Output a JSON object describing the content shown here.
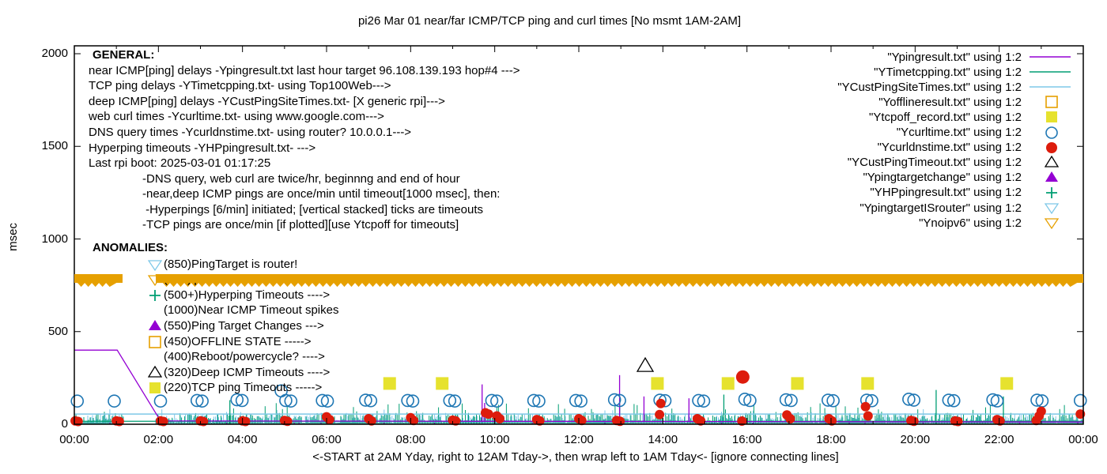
{
  "title": "pi26 Mar 01  near/far ICMP/TCP ping and curl times [No msmt 1AM-2AM]",
  "axes": {
    "ylabel": "msec",
    "xlabel": "<-START at 2AM Yday, right to 12AM Tday->, then wrap left to 1AM Tday<- [ignore connecting lines]",
    "x_tick_hours": [
      0,
      2,
      4,
      6,
      8,
      10,
      12,
      14,
      16,
      18,
      20,
      22,
      24
    ],
    "x_tick_labels": [
      "00:00",
      "02:00",
      "04:00",
      "06:00",
      "08:00",
      "10:00",
      "12:00",
      "14:00",
      "16:00",
      "18:00",
      "20:00",
      "22:00",
      "00:00"
    ],
    "y_ticks": [
      0,
      500,
      1000,
      1500,
      2000
    ],
    "y_tick_labels": [
      "0",
      "500",
      "1000",
      "1500",
      "2000"
    ]
  },
  "legend": {
    "items": [
      {
        "label": "\"Ypingresult.txt\" using 1:2",
        "marker": "line",
        "color": "#9400d3"
      },
      {
        "label": "\"YTimetcpping.txt\" using 1:2",
        "marker": "line",
        "color": "#009e73"
      },
      {
        "label": "\"YCustPingSiteTimes.txt\" using 1:2",
        "marker": "line",
        "color": "#7ec8e8"
      },
      {
        "label": "\"Yofflineresult.txt\" using 1:2",
        "marker": "square-open",
        "color": "#e6a000"
      },
      {
        "label": "\"Ytcpoff_record.txt\" using 1:2",
        "marker": "square-filled",
        "color": "#e6e22e"
      },
      {
        "label": "\"Ycurltime.txt\" using 1:2",
        "marker": "circle-open",
        "color": "#1f77b4"
      },
      {
        "label": "\"Ycurldnstime.txt\" using 1:2",
        "marker": "circle-filled",
        "color": "#dd1c0c"
      },
      {
        "label": "\"YCustPingTimeout.txt\" using 1:2",
        "marker": "triangle-open",
        "color": "#000000"
      },
      {
        "label": "\"Ypingtargetchange\" using 1:2",
        "marker": "triangle-filled",
        "color": "#9400d3"
      },
      {
        "label": "\"YHPpingresult.txt\" using 1:2",
        "marker": "plus",
        "color": "#009e73"
      },
      {
        "label": "\"YpingtargetISrouter\" using 1:2",
        "marker": "triangle-down-open",
        "color": "#7ec8e8"
      },
      {
        "label": "\"Ynoipv6\" using 1:2",
        "marker": "triangle-down-open",
        "color": "#e6a000"
      }
    ]
  },
  "general": {
    "title": "GENERAL:",
    "lines": [
      "near ICMP[ping] delays -Ypingresult.txt last hour target 96.108.139.193 hop#4 --->",
      "TCP ping delays -YTimetcpping.txt- using Top100Web--->",
      "deep ICMP[ping] delays -YCustPingSiteTimes.txt- [X generic rpi]--->",
      "web curl times -Ycurltime.txt- using www.google.com--->",
      "DNS query times -Ycurldnstime.txt- using router? 10.0.0.1--->",
      "Hyperping timeouts -YHPpingresult.txt- --->",
      "Last rpi boot: 2025-03-01 01:17:25"
    ],
    "indented_lines": [
      "-DNS query, web curl are twice/hr, beginnng and end of hour",
      "-near,deep ICMP pings are once/min until timeout[1000 msec], then:",
      " -Hyperpings [6/min] initiated; [vertical stacked] ticks are timeouts",
      "-TCP pings are once/min [if plotted][use Ytcpoff for timeouts]"
    ]
  },
  "anomalies": {
    "title": "ANOMALIES:",
    "items": [
      {
        "icon": "triangle-down-open",
        "icon_color": "#7ec8e8",
        "text": "(850)PingTarget is router!"
      },
      {
        "icon": "triangle-down-open",
        "icon_color": "#e6a000",
        "text": "(735)ipv6 failed ---->"
      },
      {
        "icon": "plus",
        "icon_color": "#009e73",
        "text": "(500+)Hyperping Timeouts ---->"
      },
      {
        "icon": null,
        "icon_color": null,
        "text": "(1000)Near ICMP Timeout spikes"
      },
      {
        "icon": "triangle-filled",
        "icon_color": "#9400d3",
        "text": "(550)Ping Target Changes --->"
      },
      {
        "icon": "square-open",
        "icon_color": "#e6a000",
        "text": "(450)OFFLINE STATE ----->"
      },
      {
        "icon": null,
        "icon_color": null,
        "text": "(400)Reboot/powercycle? ---->"
      },
      {
        "icon": "triangle-open",
        "icon_color": "#000000",
        "text": "(320)Deep ICMP Timeouts ---->"
      },
      {
        "icon": "square-filled",
        "icon_color": "#e6e22e",
        "text": "(220)TCP ping Timeouts ----->"
      }
    ]
  },
  "chart_data": {
    "type": "line",
    "x_unit": "hours 00:00-24:00",
    "y_unit": "msec",
    "x_range": [
      0,
      24
    ],
    "y_range": [
      0,
      2000
    ],
    "no_measurement_window_hours": [
      1.17,
      1.93
    ],
    "series": [
      {
        "name": "Ypingresult near ICMP line",
        "kind": "line",
        "color": "#9400d3",
        "points": [
          [
            0,
            400
          ],
          [
            1.02,
            400
          ],
          [
            2.05,
            18
          ]
        ],
        "baseline": 12,
        "spikes": [
          [
            9.7,
            215
          ],
          [
            9.76,
            115
          ],
          [
            12.97,
            265
          ],
          [
            13.55,
            150
          ],
          [
            14.62,
            140
          ]
        ]
      },
      {
        "name": "YTimetcpping TCP ping line",
        "kind": "grass",
        "color": "#009e73",
        "baseline": 16,
        "grass_max": 55,
        "spikes": [
          [
            3.7,
            130
          ],
          [
            15.45,
            160
          ],
          [
            20.5,
            185
          ],
          [
            22.1,
            150
          ]
        ]
      },
      {
        "name": "YCustPingSiteTimes deep ICMP line",
        "kind": "grass",
        "color": "#7ec8e8",
        "level": 55,
        "grass_max": 48,
        "spikes": []
      },
      {
        "name": "Ynoipv6 band",
        "kind": "band",
        "color": "#e6a000",
        "v_top": 810,
        "v_bottom": 763,
        "segments": [
          [
            0,
            1.15
          ],
          [
            1.93,
            24
          ]
        ]
      },
      {
        "name": "Ytcpoff_record TCP timeouts",
        "kind": "square-filled",
        "color": "#e6e22e",
        "value": 220,
        "times": [
          7.5,
          8.75,
          13.87,
          15.55,
          17.2,
          18.87,
          22.18
        ]
      },
      {
        "name": "YCustPingTimeout deep ICMP timeout",
        "kind": "triangle-open",
        "color": "#000000",
        "points": [
          [
            13.58,
            315
          ]
        ]
      },
      {
        "name": "Ycurltime web curl",
        "kind": "circle-open",
        "color": "#1f77b4",
        "points": [
          [
            0.07,
            125
          ],
          [
            0.95,
            125
          ],
          [
            2.05,
            125
          ],
          [
            2.92,
            128
          ],
          [
            3.04,
            125
          ],
          [
            3.87,
            132
          ],
          [
            3.99,
            128
          ],
          [
            4.92,
            180
          ],
          [
            5.03,
            128
          ],
          [
            5.15,
            125
          ],
          [
            5.9,
            128
          ],
          [
            6.02,
            125
          ],
          [
            6.93,
            130
          ],
          [
            7.05,
            127
          ],
          [
            7.93,
            128
          ],
          [
            8.05,
            125
          ],
          [
            8.93,
            128
          ],
          [
            9.05,
            125
          ],
          [
            9.93,
            128
          ],
          [
            10.05,
            125
          ],
          [
            10.93,
            128
          ],
          [
            11.05,
            125
          ],
          [
            11.93,
            128
          ],
          [
            12.05,
            125
          ],
          [
            12.85,
            132
          ],
          [
            12.97,
            128
          ],
          [
            13.93,
            130
          ],
          [
            14.05,
            127
          ],
          [
            14.85,
            128
          ],
          [
            14.97,
            125
          ],
          [
            15.95,
            135
          ],
          [
            16.07,
            128
          ],
          [
            16.93,
            132
          ],
          [
            17.05,
            128
          ],
          [
            17.93,
            130
          ],
          [
            18.05,
            127
          ],
          [
            18.85,
            130
          ],
          [
            18.97,
            127
          ],
          [
            19.85,
            135
          ],
          [
            19.97,
            130
          ],
          [
            20.8,
            130
          ],
          [
            20.92,
            127
          ],
          [
            21.85,
            132
          ],
          [
            21.95,
            126
          ],
          [
            22.9,
            130
          ],
          [
            23.02,
            126
          ],
          [
            23.93,
            128
          ]
        ]
      },
      {
        "name": "Ycurldnstime DNS query",
        "kind": "circle-filled",
        "color": "#dd1c0c",
        "points": [
          [
            0.02,
            18
          ],
          [
            0.09,
            15
          ],
          [
            1.0,
            18
          ],
          [
            1.07,
            15
          ],
          [
            2.05,
            18
          ],
          [
            2.12,
            15
          ],
          [
            3.0,
            18
          ],
          [
            3.07,
            15
          ],
          [
            4.0,
            18
          ],
          [
            4.07,
            15
          ],
          [
            5.0,
            20
          ],
          [
            5.07,
            16
          ],
          [
            6.0,
            40
          ],
          [
            6.07,
            25
          ],
          [
            7.0,
            30
          ],
          [
            7.07,
            18
          ],
          [
            8.0,
            35
          ],
          [
            8.07,
            20
          ],
          [
            9.0,
            22
          ],
          [
            9.07,
            18
          ],
          [
            9.78,
            62
          ],
          [
            9.85,
            55
          ],
          [
            10.05,
            45
          ],
          [
            10.12,
            30
          ],
          [
            11.0,
            25
          ],
          [
            11.07,
            18
          ],
          [
            12.0,
            30
          ],
          [
            12.07,
            20
          ],
          [
            12.9,
            20
          ],
          [
            12.98,
            16
          ],
          [
            13.92,
            52
          ],
          [
            13.95,
            112
          ],
          [
            14.82,
            30
          ],
          [
            14.9,
            18
          ],
          [
            15.88,
            17
          ],
          [
            15.9,
            255
          ],
          [
            16.95,
            50
          ],
          [
            17.03,
            30
          ],
          [
            17.95,
            30
          ],
          [
            18.02,
            18
          ],
          [
            18.82,
            95
          ],
          [
            18.88,
            45
          ],
          [
            19.9,
            20
          ],
          [
            19.97,
            16
          ],
          [
            20.95,
            18
          ],
          [
            21.02,
            15
          ],
          [
            21.95,
            25
          ],
          [
            22.02,
            18
          ],
          [
            22.88,
            20
          ],
          [
            22.95,
            45
          ],
          [
            23.0,
            70
          ],
          [
            23.93,
            55
          ]
        ]
      }
    ]
  }
}
